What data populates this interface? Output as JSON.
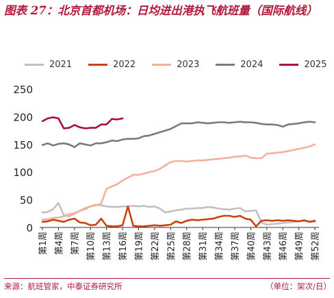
{
  "header": {
    "title": "图表 27：北京首都机场：日均进出港执飞航班量（国际航线）"
  },
  "footer": {
    "source": "来源：航班管家，中泰证券研究所",
    "unit": "（单位：架次/日）"
  },
  "colors": {
    "accent": "#b0183a",
    "s2021": "#c0c0c0",
    "s2022": "#c8410e",
    "s2023": "#f4b09a",
    "s2024": "#7a7a7a",
    "s2025": "#a8113a"
  },
  "chart_data": {
    "type": "line",
    "ylim": [
      0,
      250
    ],
    "yticks": [
      "0",
      "50",
      "100",
      "150",
      "200",
      "250"
    ],
    "xticks": [
      "第1周",
      "第4周",
      "第7周",
      "第10周",
      "第13周",
      "第16周",
      "第19周",
      "第22周",
      "第25周",
      "第28周",
      "第31周",
      "第34周",
      "第37周",
      "第40周",
      "第43周",
      "第46周",
      "第49周",
      "第52周"
    ],
    "xtick_weeks": [
      1,
      4,
      7,
      10,
      13,
      16,
      19,
      22,
      25,
      28,
      31,
      34,
      37,
      40,
      43,
      46,
      49,
      52
    ],
    "legend_position": "top",
    "series": [
      {
        "name": "2021",
        "color_key": "s2021",
        "values": [
          27,
          28,
          33,
          44,
          22,
          20,
          25,
          30,
          33,
          38,
          41,
          40,
          38,
          37,
          37,
          38,
          38,
          39,
          38,
          39,
          37,
          38,
          34,
          27,
          29,
          31,
          32,
          34,
          34,
          35,
          35,
          37,
          36,
          34,
          33,
          32,
          34,
          35,
          29,
          30,
          31,
          9,
          5,
          6,
          7,
          8,
          9,
          10,
          11,
          12,
          11,
          10
        ]
      },
      {
        "name": "2022",
        "color_key": "s2022",
        "values": [
          10,
          11,
          14,
          12,
          10,
          14,
          16,
          9,
          8,
          4,
          5,
          16,
          3,
          2,
          2,
          4,
          38,
          3,
          2,
          2,
          3,
          4,
          3,
          4,
          5,
          11,
          8,
          12,
          14,
          13,
          14,
          15,
          16,
          19,
          21,
          21,
          19,
          21,
          16,
          14,
          2,
          12,
          13,
          12,
          13,
          12,
          13,
          12,
          11,
          13,
          10,
          12
        ]
      },
      {
        "name": "2023",
        "color_key": "s2023",
        "values": [
          14,
          15,
          17,
          18,
          20,
          24,
          26,
          30,
          35,
          38,
          40,
          43,
          70,
          74,
          78,
          85,
          90,
          95,
          95,
          97,
          100,
          102,
          106,
          112,
          118,
          120,
          120,
          119,
          120,
          121,
          121,
          122,
          123,
          124,
          125,
          126,
          128,
          128,
          130,
          126,
          125,
          125,
          133,
          134,
          135,
          136,
          138,
          140,
          142,
          144,
          146,
          150
        ]
      },
      {
        "name": "2024",
        "color_key": "s2024",
        "values": [
          149,
          152,
          148,
          151,
          152,
          150,
          145,
          152,
          150,
          148,
          152,
          152,
          154,
          157,
          156,
          159,
          160,
          160,
          161,
          165,
          166,
          169,
          172,
          175,
          178,
          183,
          188,
          188,
          188,
          190,
          189,
          188,
          189,
          190,
          190,
          189,
          190,
          191,
          190,
          190,
          189,
          187,
          186,
          186,
          185,
          182,
          186,
          187,
          188,
          190,
          191,
          190
        ]
      },
      {
        "name": "2025",
        "color_key": "s2025",
        "values": [
          192,
          197,
          199,
          197,
          179,
          180,
          185,
          181,
          179,
          180,
          180,
          186,
          186,
          196,
          195,
          197
        ]
      }
    ]
  }
}
